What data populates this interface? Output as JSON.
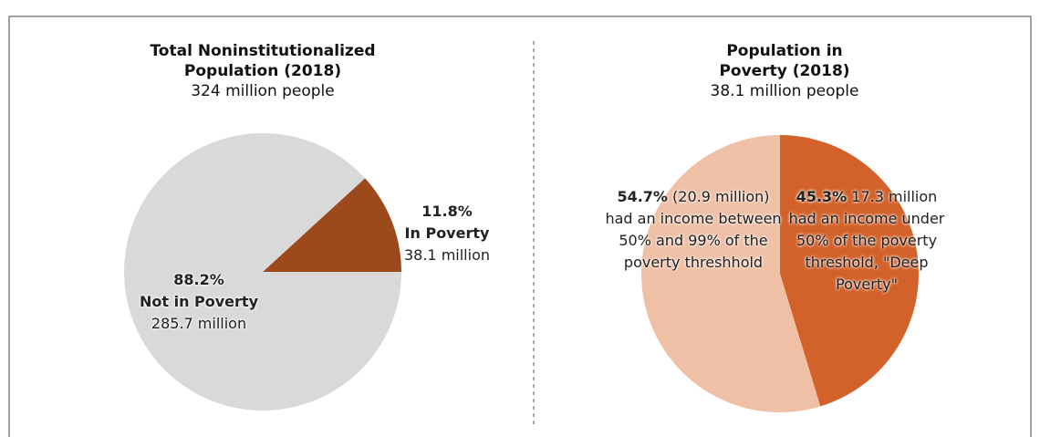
{
  "chart_data": [
    {
      "type": "pie",
      "title": "Total Noninstitutionalized Population (2018)",
      "subtitle": "324 million people",
      "categories": [
        "In Poverty",
        "Not in Poverty"
      ],
      "values": [
        11.8,
        88.2
      ],
      "value_labels": [
        "11.8%",
        "88.2%"
      ],
      "descriptions": [
        "38.1 million",
        "285.7 million"
      ],
      "colors": [
        "#9c4a1c",
        "#d9d9d9"
      ]
    },
    {
      "type": "pie",
      "title": "Population in Poverty (2018)",
      "subtitle": "38.1 million people",
      "values": [
        45.3,
        54.7
      ],
      "value_labels": [
        "45.3%",
        "54.7%"
      ],
      "descriptions": [
        "17.3 million had an income under 50% of the poverty threshold, \"Deep Poverty\"",
        "(20.9 million) had an income between 50% and 99% of the poverty threshhold"
      ],
      "colors": [
        "#d2622a",
        "#f0c0a6"
      ]
    }
  ]
}
